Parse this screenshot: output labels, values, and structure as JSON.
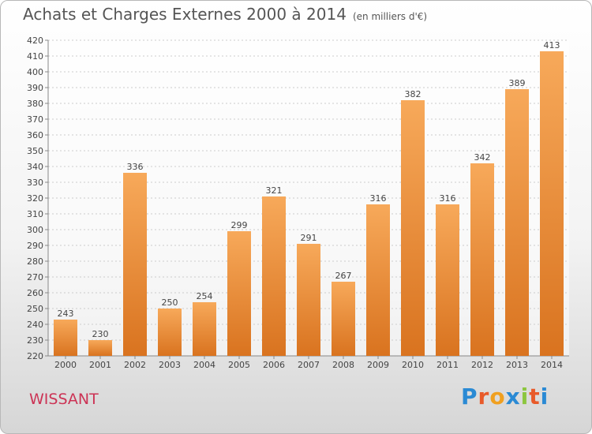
{
  "header": {
    "title": "Achats et Charges Externes 2000 à 2014",
    "subtitle": "(en milliers d'€)"
  },
  "footer": {
    "place": "WISSANT",
    "logo_letters": [
      "P",
      "r",
      "o",
      "x",
      "i",
      "t",
      "i"
    ],
    "logo_colors": [
      "#2a8ad4",
      "#e85a2a",
      "#f0a020",
      "#2a8ad4",
      "#8cc63f",
      "#e85a2a",
      "#2a8ad4"
    ]
  },
  "colors": {
    "bar_top": "#f7a95a",
    "bar_bottom": "#d9731f",
    "grid": "#cccccc"
  },
  "chart_data": {
    "type": "bar",
    "title": "Achats et Charges Externes 2000 à 2014",
    "subtitle": "(en milliers d'€)",
    "categories": [
      "2000",
      "2001",
      "2002",
      "2003",
      "2004",
      "2005",
      "2006",
      "2007",
      "2008",
      "2009",
      "2010",
      "2011",
      "2012",
      "2013",
      "2014"
    ],
    "values": [
      243,
      230,
      336,
      250,
      254,
      299,
      321,
      291,
      267,
      316,
      382,
      316,
      342,
      389,
      413
    ],
    "ylim": [
      220,
      420
    ],
    "yticks": [
      220,
      230,
      240,
      250,
      260,
      270,
      280,
      290,
      300,
      310,
      320,
      330,
      340,
      350,
      360,
      370,
      380,
      390,
      400,
      410,
      420
    ],
    "xlabel": "",
    "ylabel": "",
    "grid": "horizontal dotted"
  }
}
